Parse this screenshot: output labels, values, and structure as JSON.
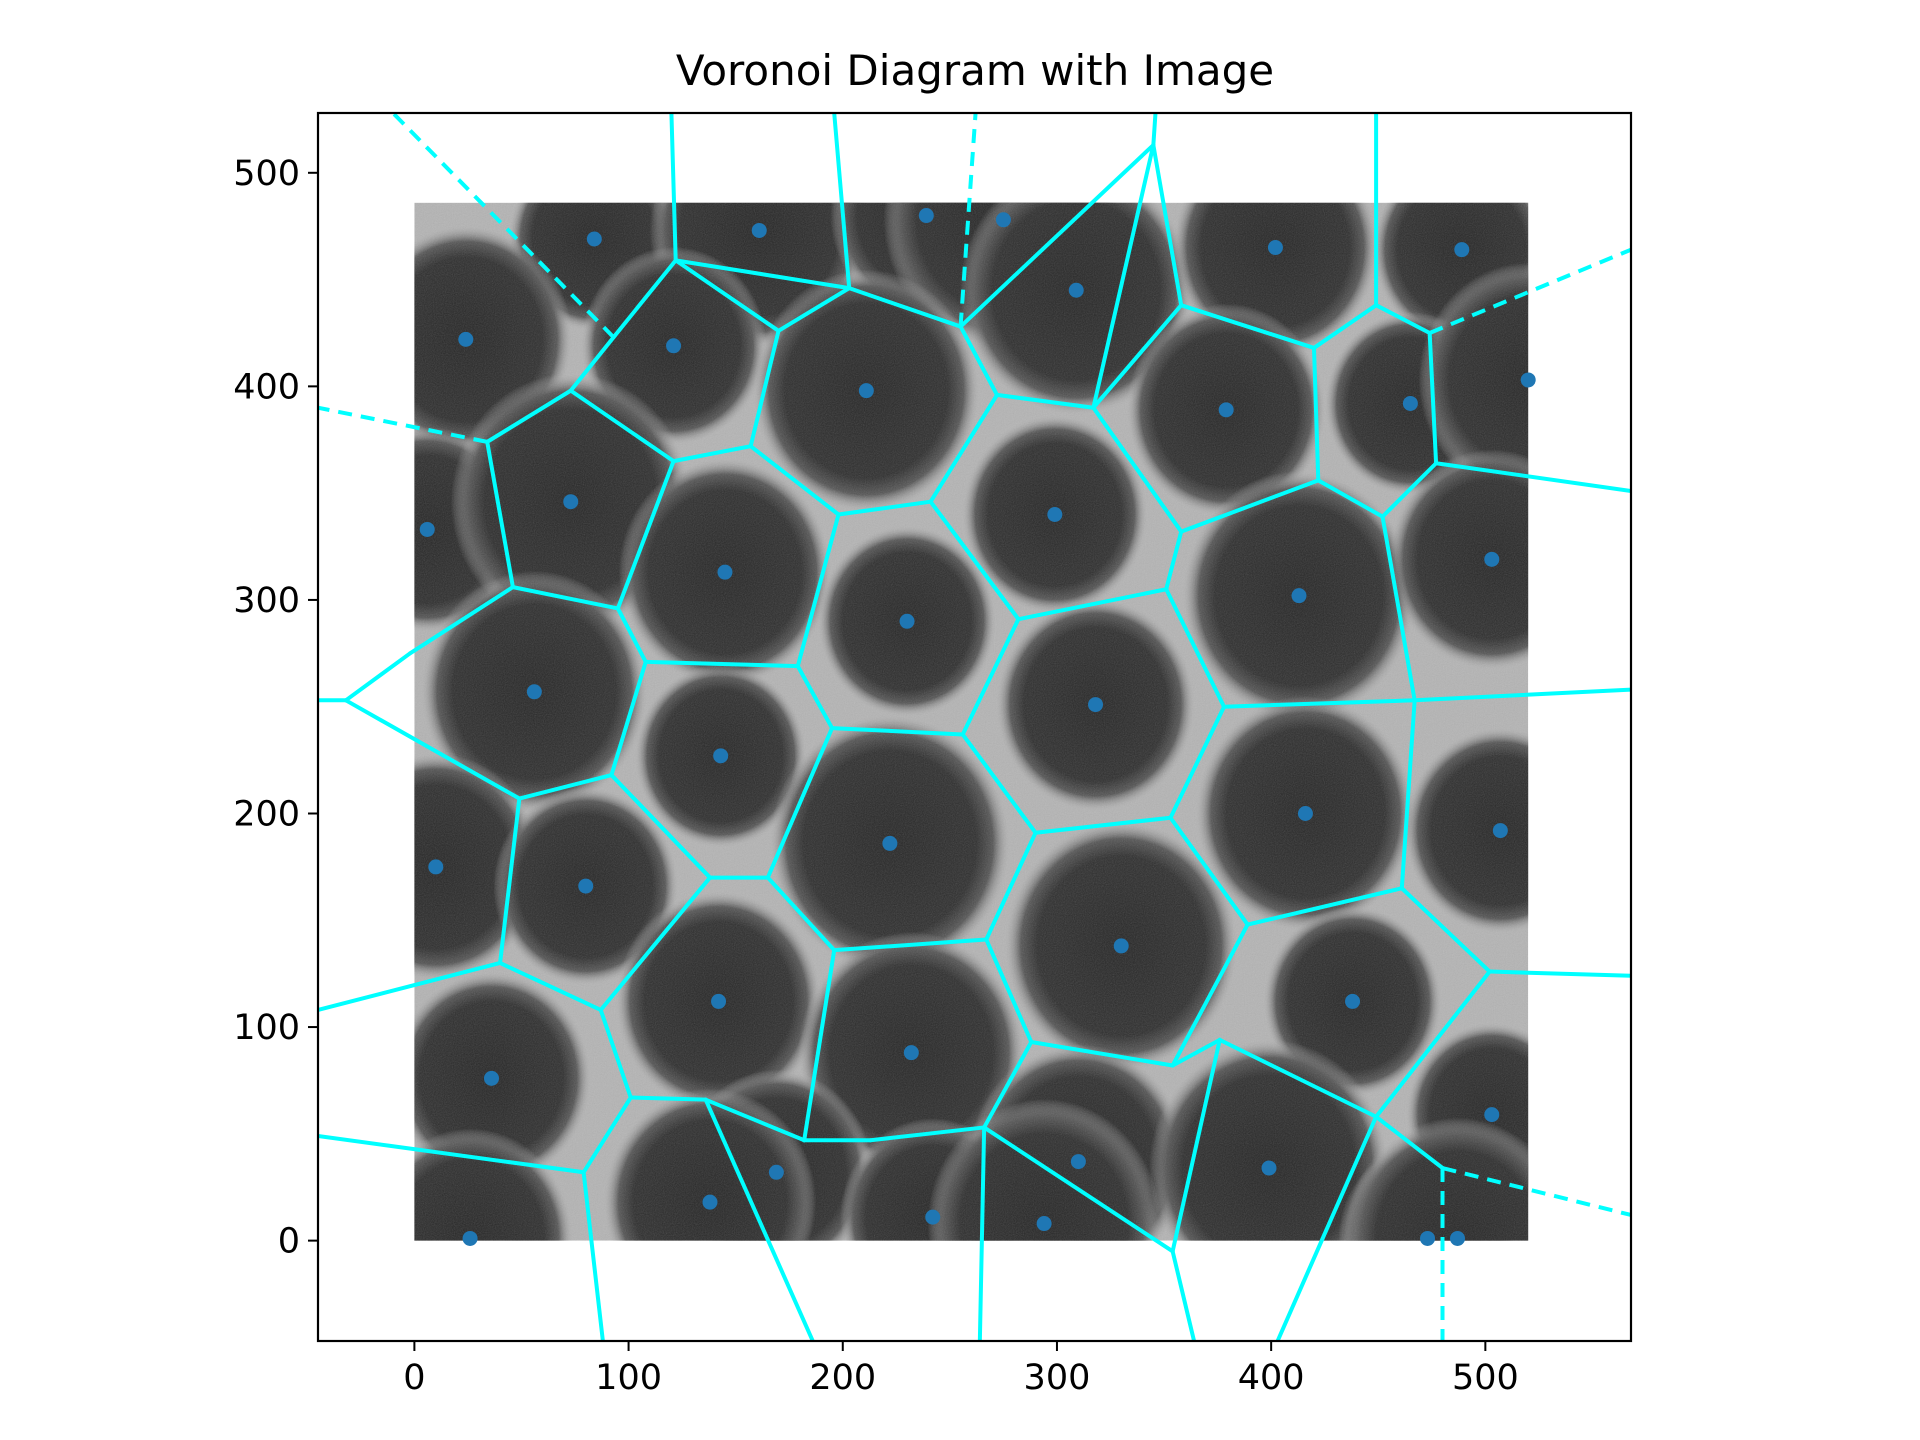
{
  "chart_data": {
    "type": "scatter",
    "title": "Voronoi Diagram with Image",
    "xlabel": "",
    "ylabel": "",
    "xlim": [
      -45,
      568
    ],
    "ylim": [
      -47,
      528
    ],
    "xticks": [
      0,
      100,
      200,
      300,
      400,
      500
    ],
    "yticks": [
      0,
      100,
      200,
      300,
      400,
      500
    ],
    "grid": false,
    "image_extent": [
      0,
      520,
      0,
      486
    ],
    "colors": {
      "points": "#1f77b4",
      "edges": "#00ffff",
      "background_image": "grayscale cell micrograph"
    },
    "points": [
      [
        84,
        469
      ],
      [
        161,
        473
      ],
      [
        239,
        480
      ],
      [
        275,
        478
      ],
      [
        24,
        422
      ],
      [
        121,
        419
      ],
      [
        309,
        445
      ],
      [
        402,
        465
      ],
      [
        489,
        464
      ],
      [
        211,
        398
      ],
      [
        379,
        389
      ],
      [
        465,
        392
      ],
      [
        520,
        403
      ],
      [
        6,
        333
      ],
      [
        73,
        346
      ],
      [
        145,
        313
      ],
      [
        299,
        340
      ],
      [
        413,
        302
      ],
      [
        503,
        319
      ],
      [
        230,
        290
      ],
      [
        56,
        257
      ],
      [
        318,
        251
      ],
      [
        143,
        227
      ],
      [
        416,
        200
      ],
      [
        507,
        192
      ],
      [
        222,
        186
      ],
      [
        10,
        175
      ],
      [
        80,
        166
      ],
      [
        330,
        138
      ],
      [
        142,
        112
      ],
      [
        438,
        112
      ],
      [
        232,
        88
      ],
      [
        36,
        76
      ],
      [
        503,
        59
      ],
      [
        310,
        37
      ],
      [
        169,
        32
      ],
      [
        399,
        34
      ],
      [
        138,
        18
      ],
      [
        242,
        11
      ],
      [
        294,
        8
      ],
      [
        26,
        1
      ],
      [
        473,
        1
      ],
      [
        487,
        1
      ]
    ],
    "finite_edges": [
      [
        [
          93,
          423
        ],
        [
          122,
          459
        ]
      ],
      [
        [
          122,
          459
        ],
        [
          203,
          446
        ]
      ],
      [
        [
          203,
          446
        ],
        [
          170,
          426
        ]
      ],
      [
        [
          170,
          426
        ],
        [
          122,
          459
        ]
      ],
      [
        [
          203,
          446
        ],
        [
          255,
          428
        ]
      ],
      [
        [
          255,
          428
        ],
        [
          272,
          396
        ]
      ],
      [
        [
          272,
          396
        ],
        [
          317,
          390
        ]
      ],
      [
        [
          317,
          390
        ],
        [
          345,
          513
        ]
      ],
      [
        [
          255,
          428
        ],
        [
          345,
          513
        ]
      ],
      [
        [
          345,
          513
        ],
        [
          358,
          438
        ]
      ],
      [
        [
          358,
          438
        ],
        [
          420,
          418
        ]
      ],
      [
        [
          420,
          418
        ],
        [
          449,
          438
        ]
      ],
      [
        [
          449,
          438
        ],
        [
          474,
          425
        ]
      ],
      [
        [
          420,
          418
        ],
        [
          422,
          356
        ]
      ],
      [
        [
          422,
          356
        ],
        [
          452,
          339
        ]
      ],
      [
        [
          452,
          339
        ],
        [
          477,
          364
        ]
      ],
      [
        [
          474,
          425
        ],
        [
          477,
          364
        ]
      ],
      [
        [
          358,
          438
        ],
        [
          317,
          390
        ]
      ],
      [
        [
          317,
          390
        ],
        [
          358,
          332
        ]
      ],
      [
        [
          358,
          332
        ],
        [
          422,
          356
        ]
      ],
      [
        [
          93,
          423
        ],
        [
          73,
          398
        ]
      ],
      [
        [
          73,
          398
        ],
        [
          34,
          374
        ]
      ],
      [
        [
          73,
          398
        ],
        [
          121,
          365
        ]
      ],
      [
        [
          121,
          365
        ],
        [
          157,
          372
        ]
      ],
      [
        [
          157,
          372
        ],
        [
          170,
          426
        ]
      ],
      [
        [
          157,
          372
        ],
        [
          198,
          340
        ]
      ],
      [
        [
          198,
          340
        ],
        [
          241,
          346
        ]
      ],
      [
        [
          241,
          346
        ],
        [
          272,
          396
        ]
      ],
      [
        [
          241,
          346
        ],
        [
          282,
          291
        ]
      ],
      [
        [
          282,
          291
        ],
        [
          351,
          305
        ]
      ],
      [
        [
          351,
          305
        ],
        [
          358,
          332
        ]
      ],
      [
        [
          34,
          374
        ],
        [
          46,
          306
        ]
      ],
      [
        [
          46,
          306
        ],
        [
          95,
          296
        ]
      ],
      [
        [
          95,
          296
        ],
        [
          121,
          365
        ]
      ],
      [
        [
          95,
          296
        ],
        [
          108,
          271
        ]
      ],
      [
        [
          108,
          271
        ],
        [
          179,
          269
        ]
      ],
      [
        [
          179,
          269
        ],
        [
          198,
          340
        ]
      ],
      [
        [
          46,
          306
        ],
        [
          -2,
          275
        ]
      ],
      [
        [
          -2,
          275
        ],
        [
          -32,
          253
        ]
      ],
      [
        [
          -32,
          253
        ],
        [
          49,
          207
        ]
      ],
      [
        [
          49,
          207
        ],
        [
          92,
          218
        ]
      ],
      [
        [
          92,
          218
        ],
        [
          108,
          271
        ]
      ],
      [
        [
          179,
          269
        ],
        [
          195,
          240
        ]
      ],
      [
        [
          195,
          240
        ],
        [
          256,
          237
        ]
      ],
      [
        [
          256,
          237
        ],
        [
          282,
          291
        ]
      ],
      [
        [
          351,
          305
        ],
        [
          378,
          250
        ]
      ],
      [
        [
          378,
          250
        ],
        [
          467,
          253
        ]
      ],
      [
        [
          467,
          253
        ],
        [
          452,
          339
        ]
      ],
      [
        [
          256,
          237
        ],
        [
          290,
          191
        ]
      ],
      [
        [
          290,
          191
        ],
        [
          353,
          198
        ]
      ],
      [
        [
          353,
          198
        ],
        [
          378,
          250
        ]
      ],
      [
        [
          353,
          198
        ],
        [
          389,
          148
        ]
      ],
      [
        [
          389,
          148
        ],
        [
          461,
          165
        ]
      ],
      [
        [
          461,
          165
        ],
        [
          467,
          253
        ]
      ],
      [
        [
          461,
          165
        ],
        [
          502,
          126
        ]
      ],
      [
        [
          195,
          240
        ],
        [
          165,
          170
        ]
      ],
      [
        [
          165,
          170
        ],
        [
          138,
          170
        ]
      ],
      [
        [
          138,
          170
        ],
        [
          92,
          218
        ]
      ],
      [
        [
          165,
          170
        ],
        [
          196,
          136
        ]
      ],
      [
        [
          196,
          136
        ],
        [
          267,
          141
        ]
      ],
      [
        [
          267,
          141
        ],
        [
          290,
          191
        ]
      ],
      [
        [
          49,
          207
        ],
        [
          40,
          130
        ]
      ],
      [
        [
          40,
          130
        ],
        [
          87,
          108
        ]
      ],
      [
        [
          87,
          108
        ],
        [
          138,
          170
        ]
      ],
      [
        [
          87,
          108
        ],
        [
          101,
          67
        ]
      ],
      [
        [
          101,
          67
        ],
        [
          136,
          66
        ]
      ],
      [
        [
          136,
          66
        ],
        [
          182,
          47
        ]
      ],
      [
        [
          182,
          47
        ],
        [
          196,
          136
        ]
      ],
      [
        [
          267,
          141
        ],
        [
          288,
          93
        ]
      ],
      [
        [
          288,
          93
        ],
        [
          354,
          82
        ]
      ],
      [
        [
          354,
          82
        ],
        [
          389,
          148
        ]
      ],
      [
        [
          354,
          82
        ],
        [
          376,
          94
        ]
      ],
      [
        [
          376,
          94
        ],
        [
          449,
          58
        ]
      ],
      [
        [
          449,
          58
        ],
        [
          502,
          126
        ]
      ],
      [
        [
          449,
          58
        ],
        [
          480,
          34
        ]
      ],
      [
        [
          288,
          93
        ],
        [
          266,
          53
        ]
      ],
      [
        [
          266,
          53
        ],
        [
          213,
          47
        ]
      ],
      [
        [
          213,
          47
        ],
        [
          182,
          47
        ]
      ],
      [
        [
          101,
          67
        ],
        [
          79,
          32
        ]
      ],
      [
        [
          136,
          66
        ],
        [
          186,
          -47
        ]
      ],
      [
        [
          266,
          53
        ],
        [
          354,
          -5
        ]
      ],
      [
        [
          354,
          -5
        ],
        [
          376,
          94
        ]
      ],
      [
        [
          40,
          130
        ],
        [
          -45,
          108
        ]
      ],
      [
        [
          79,
          32
        ],
        [
          -45,
          49
        ]
      ],
      [
        [
          79,
          32
        ],
        [
          88,
          -47
        ]
      ],
      [
        [
          266,
          53
        ],
        [
          264,
          -47
        ]
      ],
      [
        [
          354,
          -5
        ],
        [
          364,
          -47
        ]
      ],
      [
        [
          449,
          58
        ],
        [
          403,
          -47
        ]
      ],
      [
        [
          -32,
          253
        ],
        [
          -45,
          253
        ]
      ],
      [
        [
          461,
          165
        ],
        [
          461,
          165
        ]
      ],
      [
        [
          502,
          126
        ],
        [
          568,
          124
        ]
      ],
      [
        [
          477,
          364
        ],
        [
          568,
          351
        ]
      ],
      [
        [
          467,
          253
        ],
        [
          568,
          258
        ]
      ],
      [
        [
          122,
          459
        ],
        [
          120,
          528
        ]
      ],
      [
        [
          203,
          446
        ],
        [
          196,
          528
        ]
      ],
      [
        [
          449,
          438
        ],
        [
          449,
          528
        ]
      ],
      [
        [
          345,
          513
        ],
        [
          346,
          528
        ]
      ]
    ],
    "infinite_edges": [
      [
        [
          93,
          423
        ],
        [
          -10,
          528
        ]
      ],
      [
        [
          255,
          428
        ],
        [
          262,
          528
        ]
      ],
      [
        [
          34,
          374
        ],
        [
          -45,
          390
        ]
      ],
      [
        [
          474,
          425
        ],
        [
          568,
          464
        ]
      ],
      [
        [
          480,
          34
        ],
        [
          568,
          12
        ]
      ],
      [
        [
          480,
          34
        ],
        [
          480,
          -47
        ]
      ]
    ]
  }
}
